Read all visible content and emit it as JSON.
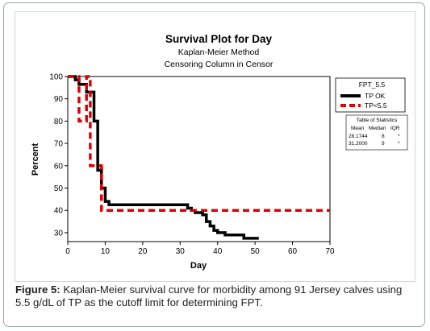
{
  "caption": {
    "label": "Figure 5:",
    "text": "Kaplan-Meier survival curve for morbidity among 91 Jersey calves using 5.5 g/dL of TP as the cutoff limit for determining FPT."
  },
  "chart_data": {
    "type": "line",
    "step": true,
    "title": "Survival Plot for Day",
    "subtitle_lines": [
      "Kaplan-Meier Method",
      "Censoring Column in Censor"
    ],
    "xlabel": "Day",
    "ylabel": "Percent",
    "xlim": [
      0,
      70
    ],
    "ylim": [
      26,
      100
    ],
    "xticks": [
      0,
      10,
      20,
      30,
      40,
      50,
      60,
      70
    ],
    "yticks": [
      30,
      40,
      50,
      60,
      70,
      80,
      90,
      100
    ],
    "grid": false,
    "legend": {
      "position": "right",
      "title": "FPT_5.5",
      "entries": [
        {
          "label": "TP OK",
          "color": "#000000",
          "dash": "solid"
        },
        {
          "label": "TP<5.5",
          "color": "#e00000",
          "dash": "dashed"
        }
      ]
    },
    "stats_table": {
      "title": "Table of Statistics",
      "headers": [
        "Mean",
        "Median",
        "IQR"
      ],
      "rows": [
        [
          "28.1744",
          "8",
          "*"
        ],
        [
          "31.2000",
          "9",
          "*"
        ]
      ]
    },
    "series": [
      {
        "name": "TP OK",
        "color": "#000000",
        "dash": "solid",
        "x": [
          0,
          2,
          3,
          5,
          7,
          8,
          9,
          10,
          11,
          31,
          32,
          33,
          34,
          36,
          37,
          38,
          39,
          40,
          42,
          47,
          51
        ],
        "y": [
          100,
          98.5,
          96.5,
          93,
          80,
          58,
          50,
          44,
          42.5,
          42.5,
          41,
          40,
          39,
          38,
          35,
          33,
          31,
          30,
          29,
          27.5,
          27.5
        ]
      },
      {
        "name": "TP<5.5",
        "color": "#e00000",
        "dash": "dashed",
        "x": [
          0,
          3,
          5,
          6,
          9,
          70
        ],
        "y": [
          100,
          80,
          100,
          60,
          40,
          40
        ]
      }
    ]
  }
}
